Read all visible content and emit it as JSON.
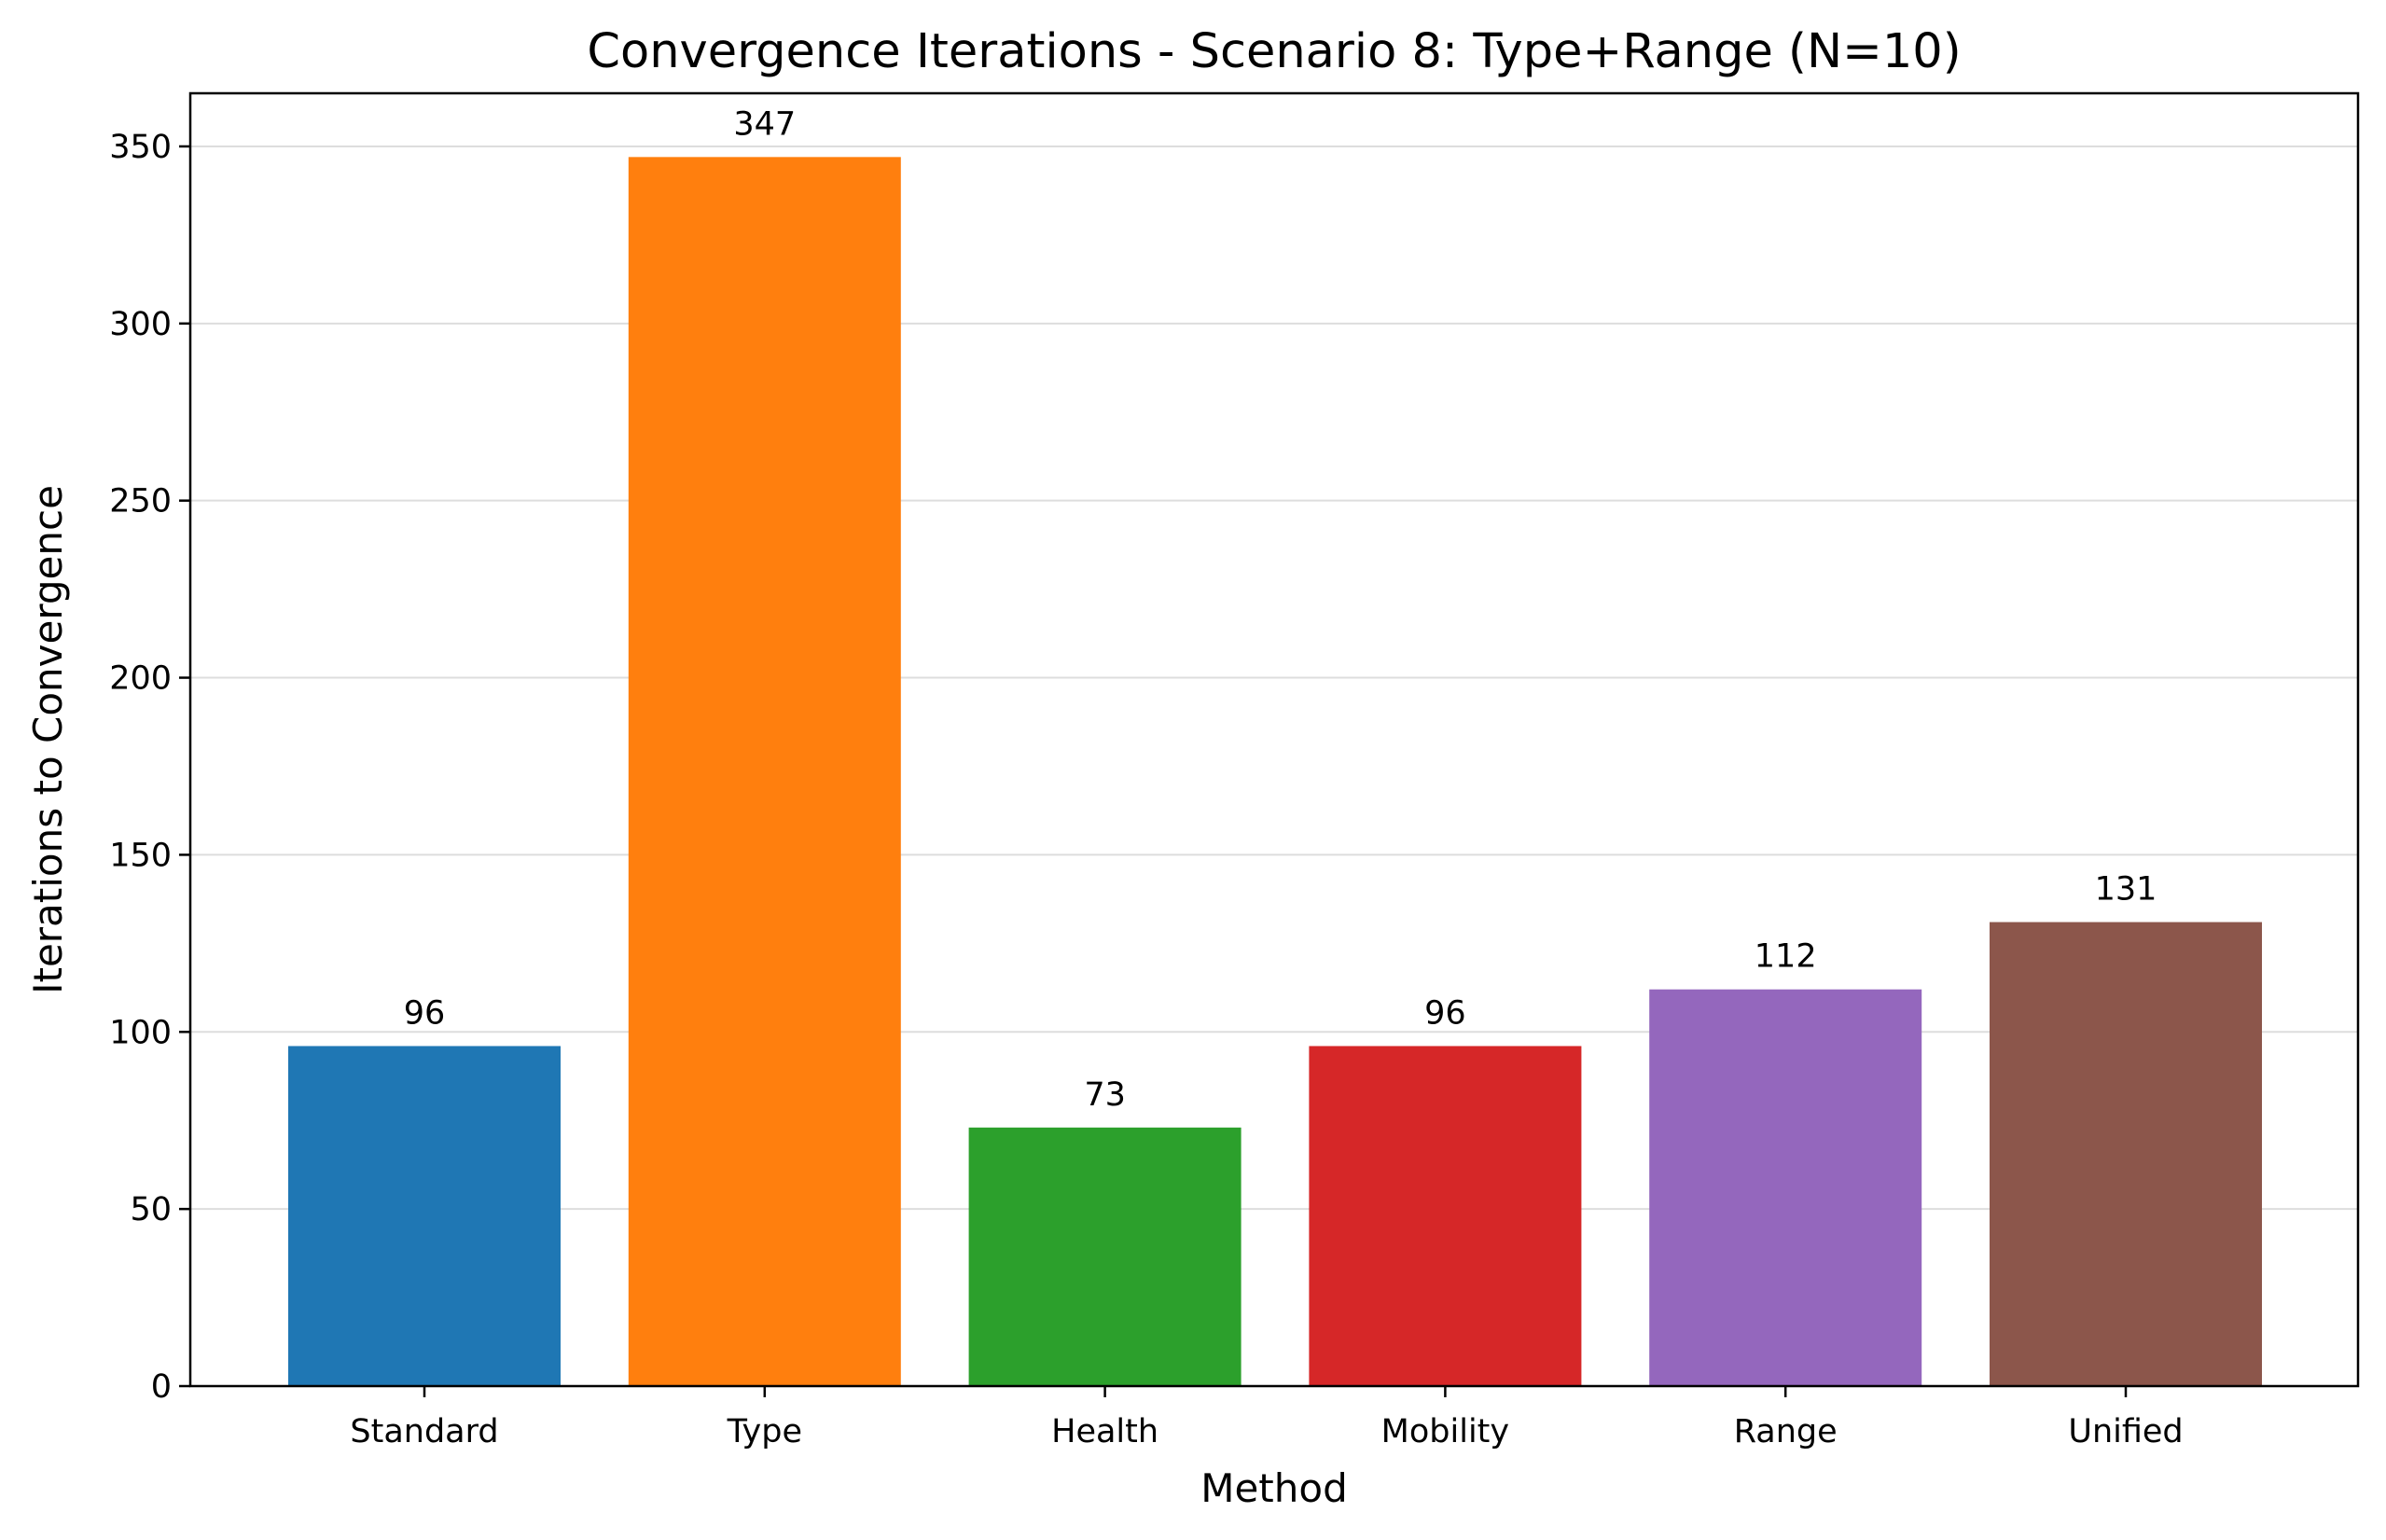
{
  "chart_data": {
    "type": "bar",
    "title": "Convergence Iterations - Scenario 8: Type+Range (N=10)",
    "xlabel": "Method",
    "ylabel": "Iterations to Convergence",
    "categories": [
      "Standard",
      "Type",
      "Health",
      "Mobility",
      "Range",
      "Unified"
    ],
    "values": [
      96,
      347,
      73,
      96,
      112,
      131
    ],
    "data_labels": [
      "96",
      "347",
      "73",
      "96",
      "112",
      "131"
    ],
    "colors": [
      "#1f77b4",
      "#ff7f0e",
      "#2ca02c",
      "#d62728",
      "#9467bd",
      "#8c564b"
    ],
    "ylim": [
      0,
      365
    ],
    "yticks": [
      0,
      50,
      100,
      150,
      200,
      250,
      300,
      350
    ],
    "grid": "y",
    "legend": "none"
  }
}
